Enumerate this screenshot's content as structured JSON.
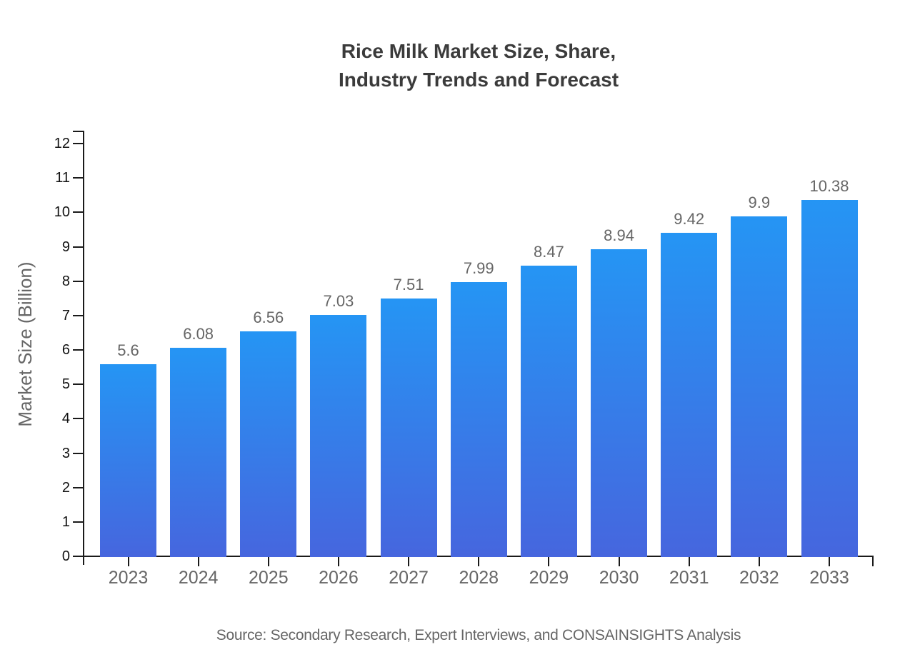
{
  "title": {
    "line1": "Rice Milk Market Size, Share,",
    "line2": "Industry Trends and Forecast"
  },
  "source": "Source: Secondary Research, Expert Interviews, and CONSAINSIGHTS Analysis",
  "chart_data": {
    "type": "bar",
    "title": "Rice Milk Market Size, Share, Industry Trends and Forecast",
    "categories": [
      "2023",
      "2024",
      "2025",
      "2026",
      "2027",
      "2028",
      "2029",
      "2030",
      "2031",
      "2032",
      "2033"
    ],
    "values": [
      5.6,
      6.08,
      6.56,
      7.03,
      7.51,
      7.99,
      8.47,
      8.94,
      9.42,
      9.9,
      10.38
    ],
    "value_labels": [
      "5.6",
      "6.08",
      "6.56",
      "7.03",
      "7.51",
      "7.99",
      "8.47",
      "8.94",
      "9.42",
      "9.9",
      "10.38"
    ],
    "xlabel": "",
    "ylabel": "Market Size (Billion)",
    "ylim": [
      0,
      12
    ],
    "y_ticks": [
      0,
      1,
      2,
      3,
      4,
      5,
      6,
      7,
      8,
      9,
      10,
      11,
      12
    ],
    "grid": false,
    "legend_position": "none",
    "bar_color_top": "#2595F4",
    "bar_color_bottom": "#4666DE"
  },
  "colors": {
    "axis": "#1a1a1a",
    "title_text": "#3b3b3b",
    "label_gray": "#666666",
    "tick_label": "#111111",
    "background": "#ffffff"
  }
}
